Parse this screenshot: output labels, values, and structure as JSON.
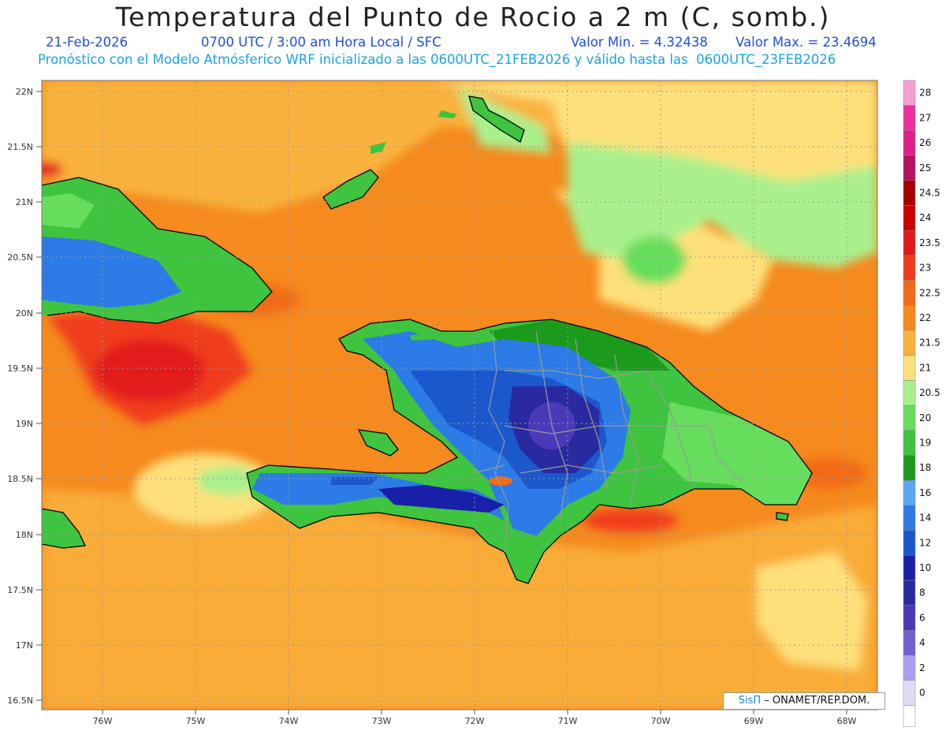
{
  "title": "Temperatura del Punto de Rocio a 2 m (C, somb.)",
  "date": "21-Feb-2026",
  "valid_time": "0700 UTC / 3:00 am Hora Local / SFC",
  "min_label": "Valor Min. = 4.32438",
  "max_label": "Valor Max. = 23.4694",
  "model_info": "Pronóstico con el Modelo Atmósferico WRF inicializado a las 0600UTC_21FEB2026 y válido hasta las  0600UTC_23FEB2026",
  "lat_labels": [
    "22N",
    "21.5N",
    "21N",
    "20.5N",
    "20N",
    "19.5N",
    "19N",
    "18.5N",
    "18N",
    "17.5N",
    "17N",
    "16.5N"
  ],
  "lon_labels": [
    "76W",
    "75W",
    "74W",
    "73W",
    "72W",
    "71W",
    "70W",
    "69W",
    "68W"
  ],
  "colorbar": {
    "levels": [
      "28",
      "27",
      "26",
      "25",
      "24.5",
      "24",
      "23.5",
      "23",
      "22.5",
      "22",
      "21.5",
      "21",
      "20.5",
      "20",
      "19",
      "18",
      "16",
      "14",
      "12",
      "10",
      "8",
      "6",
      "4",
      "2",
      "0"
    ],
    "colors": [
      "#f4a0d0",
      "#ee30a0",
      "#e0208a",
      "#b81060",
      "#a80000",
      "#cc0000",
      "#e21a1a",
      "#f03c1c",
      "#f26a18",
      "#f58a1e",
      "#f9b23c",
      "#fde07a",
      "#a9f08c",
      "#66dd5c",
      "#3ec43e",
      "#1b9a1b",
      "#5aa8f4",
      "#2c7be6",
      "#1a58cc",
      "#1a20a8",
      "#2a2aa0",
      "#4a3ab8",
      "#7060d0",
      "#a8a0ec",
      "#dcdcf6"
    ],
    "last_color": "#ffffff"
  },
  "credit": {
    "sis": "SisΠ",
    "rest": " – ONAMET/REP.DOM."
  },
  "colors": {
    "ocean_orange": "#f58a1e",
    "ocean_light": "#f9b23c",
    "pale_yellow": "#fde07a",
    "red_zone": "#e21a1a",
    "land_green": "#3ec43e",
    "land_blue": "#2c7be6",
    "land_dark": "#2a2aa0"
  }
}
